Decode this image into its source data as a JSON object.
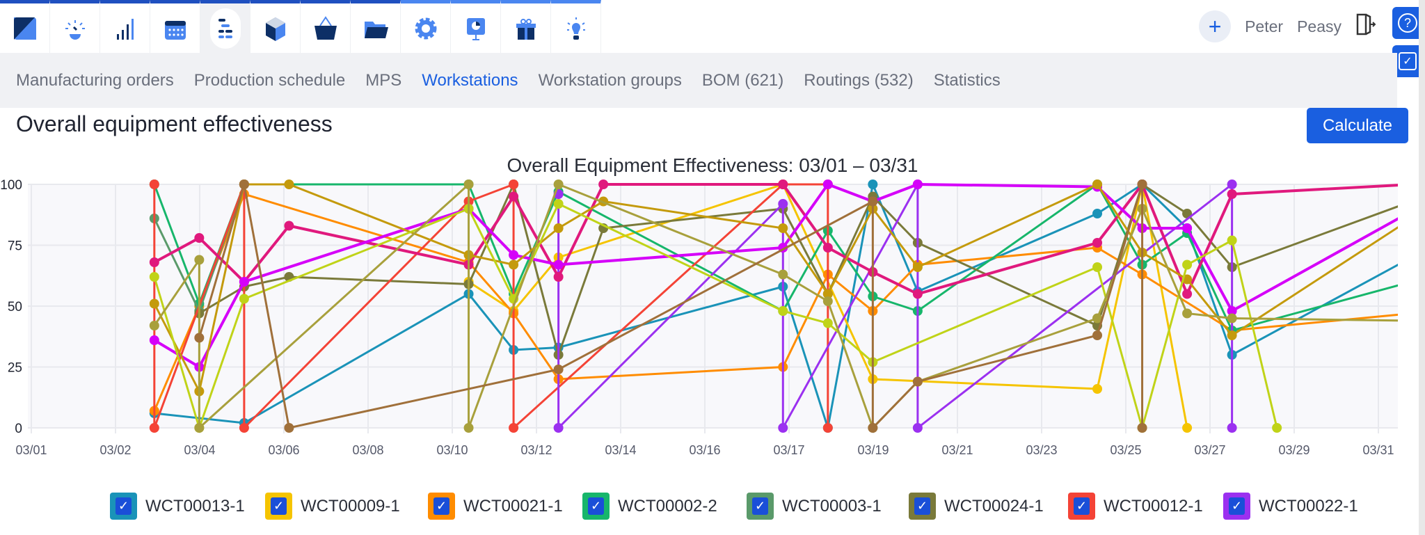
{
  "topnav": {
    "tabs": [
      {
        "icon": "logo-icon"
      },
      {
        "icon": "dashboard-gauge-icon"
      },
      {
        "icon": "signal-bars-icon"
      },
      {
        "icon": "calendar-icon"
      },
      {
        "icon": "production-planning-icon",
        "active": true
      },
      {
        "icon": "box-icon"
      },
      {
        "icon": "basket-icon"
      },
      {
        "icon": "folder-icon"
      },
      {
        "icon": "gear-icon"
      },
      {
        "icon": "presentation-icon"
      },
      {
        "icon": "gift-icon"
      },
      {
        "icon": "lightbulb-icon"
      }
    ]
  },
  "user": {
    "first": "Peter",
    "last": "Peasy"
  },
  "subnav": [
    "Manufacturing orders",
    "Production schedule",
    "MPS",
    "Workstations",
    "Workstation groups",
    "BOM (621)",
    "Routings (532)",
    "Statistics"
  ],
  "page": {
    "title": "Overall equipment effectiveness",
    "calculate": "Calculate"
  },
  "chart_data": {
    "type": "line",
    "title": "Overall Equipment Effectiveness: 03/01 – 03/31",
    "ylim": [
      0,
      100
    ],
    "yticks": [
      "0",
      "25",
      "50",
      "75",
      "100"
    ],
    "xticks": [
      "03/01",
      "03/02",
      "03/04",
      "03/06",
      "03/08",
      "03/10",
      "03/12",
      "03/14",
      "03/16",
      "03/17",
      "03/19",
      "03/21",
      "03/23",
      "03/25",
      "03/27",
      "03/29",
      "03/31"
    ],
    "grid": true,
    "legend": "bottom",
    "series": [
      {
        "name": "WCT00013-1",
        "color": "#1a93b8",
        "points": [
          [
            "03/03",
            6
          ],
          [
            "03/05",
            2
          ],
          [
            "03/10",
            55
          ],
          [
            "03/11",
            32
          ],
          [
            "03/12",
            33
          ],
          [
            "03/17",
            58
          ],
          [
            "03/18",
            0
          ],
          [
            "03/19",
            100
          ],
          [
            "03/20",
            56
          ],
          [
            "03/24",
            88
          ],
          [
            "03/25",
            100
          ],
          [
            "03/26",
            82
          ],
          [
            "03/27",
            30
          ],
          [
            "03/31",
            70
          ]
        ]
      },
      {
        "name": "WCT00009-1",
        "color": "#f5c400",
        "points": [
          [
            "03/10",
            60
          ],
          [
            "03/11",
            48
          ],
          [
            "03/12",
            70
          ],
          [
            "03/17",
            100
          ],
          [
            "03/19",
            20
          ],
          [
            "03/24",
            16
          ],
          [
            "03/25",
            100
          ],
          [
            "03/26",
            0
          ]
        ]
      },
      {
        "name": "WCT00021-1",
        "color": "#ff8c00",
        "points": [
          [
            "03/03",
            7
          ],
          [
            "03/04",
            50
          ],
          [
            "03/05",
            96
          ],
          [
            "03/10",
            68
          ],
          [
            "03/11",
            47
          ],
          [
            "03/12",
            20
          ],
          [
            "03/17",
            25
          ],
          [
            "03/18",
            63
          ],
          [
            "03/19",
            48
          ],
          [
            "03/20",
            67
          ],
          [
            "03/24",
            74
          ],
          [
            "03/25",
            63
          ],
          [
            "03/27",
            40
          ],
          [
            "03/31",
            47
          ]
        ]
      },
      {
        "name": "WCT00002-2",
        "color": "#17b66b",
        "points": [
          [
            "03/03",
            100
          ],
          [
            "03/04",
            51
          ],
          [
            "03/05",
            100
          ],
          [
            "03/10",
            100
          ],
          [
            "03/11",
            55
          ],
          [
            "03/12",
            97
          ],
          [
            "03/17",
            48
          ],
          [
            "03/18",
            81
          ],
          [
            "03/19",
            54
          ],
          [
            "03/20",
            48
          ],
          [
            "03/24",
            100
          ],
          [
            "03/25",
            67
          ],
          [
            "03/26",
            80
          ],
          [
            "03/27",
            40
          ],
          [
            "03/31",
            60
          ]
        ]
      },
      {
        "name": "WCT00003-1",
        "color": "#5a9a6a",
        "points": [
          [
            "03/03",
            86
          ],
          [
            "03/04",
            48
          ],
          [
            "03/05",
            100
          ]
        ]
      },
      {
        "name": "WCT00024-1",
        "color": "#7a7a3a",
        "points": [
          [
            "03/04",
            47
          ],
          [
            "03/05",
            58
          ],
          [
            "03/06",
            62
          ],
          [
            "03/10",
            59
          ],
          [
            "03/11",
            100
          ],
          [
            "03/12",
            30
          ],
          [
            "03/13",
            82
          ],
          [
            "03/17",
            90
          ],
          [
            "03/18",
            55
          ],
          [
            "03/19",
            95
          ],
          [
            "03/20",
            76
          ],
          [
            "03/24",
            42
          ],
          [
            "03/25",
            100
          ],
          [
            "03/26",
            88
          ],
          [
            "03/27",
            66
          ],
          [
            "03/31",
            93
          ]
        ]
      },
      {
        "name": "WCT00012-1",
        "color": "#f44336",
        "points": [
          [
            "03/03",
            100
          ],
          [
            "03/03",
            0
          ],
          [
            "03/05",
            100
          ],
          [
            "03/05",
            0
          ],
          [
            "03/10",
            93
          ],
          [
            "03/11",
            100
          ],
          [
            "03/11",
            0
          ],
          [
            "03/17",
            100
          ],
          [
            "03/18",
            100
          ],
          [
            "03/18",
            0
          ]
        ]
      },
      {
        "name": "WCT00022-1",
        "color": "#9b30f0",
        "points": [
          [
            "03/12",
            96
          ],
          [
            "03/12",
            0
          ],
          [
            "03/17",
            92
          ],
          [
            "03/17",
            0
          ],
          [
            "03/20",
            100
          ],
          [
            "03/20",
            0
          ],
          [
            "03/27",
            100
          ],
          [
            "03/27",
            0
          ]
        ]
      },
      {
        "color": "#e0197d",
        "points": [
          [
            "03/03",
            68
          ],
          [
            "03/04",
            78
          ],
          [
            "03/05",
            60
          ],
          [
            "03/06",
            83
          ],
          [
            "03/10",
            67
          ],
          [
            "03/11",
            95
          ],
          [
            "03/12",
            62
          ],
          [
            "03/13",
            100
          ],
          [
            "03/17",
            100
          ],
          [
            "03/18",
            74
          ],
          [
            "03/19",
            64
          ],
          [
            "03/20",
            55
          ],
          [
            "03/24",
            76
          ],
          [
            "03/25",
            100
          ],
          [
            "03/26",
            55
          ],
          [
            "03/27",
            96
          ],
          [
            "03/31",
            100
          ]
        ]
      },
      {
        "color": "#d500f9",
        "points": [
          [
            "03/03",
            36
          ],
          [
            "03/04",
            25
          ],
          [
            "03/05",
            60
          ],
          [
            "03/10",
            90
          ],
          [
            "03/11",
            71
          ],
          [
            "03/12",
            67
          ],
          [
            "03/17",
            74
          ],
          [
            "03/18",
            100
          ],
          [
            "03/19",
            93
          ],
          [
            "03/20",
            100
          ],
          [
            "03/24",
            99
          ],
          [
            "03/25",
            82
          ],
          [
            "03/26",
            82
          ],
          [
            "03/27",
            48
          ],
          [
            "03/31",
            89
          ]
        ]
      },
      {
        "color": "#c49a0c",
        "points": [
          [
            "03/03",
            51
          ],
          [
            "03/04",
            15
          ],
          [
            "03/05",
            100
          ],
          [
            "03/06",
            100
          ],
          [
            "03/10",
            71
          ],
          [
            "03/11",
            67
          ],
          [
            "03/12",
            82
          ],
          [
            "03/13",
            93
          ],
          [
            "03/17",
            82
          ],
          [
            "03/18",
            55
          ],
          [
            "03/19",
            90
          ],
          [
            "03/20",
            66
          ],
          [
            "03/24",
            100
          ],
          [
            "03/25",
            72
          ],
          [
            "03/26",
            61
          ],
          [
            "03/27",
            38
          ],
          [
            "03/31",
            86
          ]
        ]
      },
      {
        "color": "#c0d318",
        "points": [
          [
            "03/03",
            62
          ],
          [
            "03/04",
            0
          ],
          [
            "03/05",
            53
          ],
          [
            "03/10",
            90
          ],
          [
            "03/11",
            53
          ],
          [
            "03/12",
            92
          ],
          [
            "03/17",
            48
          ],
          [
            "03/18",
            43
          ],
          [
            "03/19",
            27
          ],
          [
            "03/24",
            66
          ],
          [
            "03/25",
            0
          ],
          [
            "03/26",
            67
          ],
          [
            "03/27",
            77
          ],
          [
            "03/28",
            0
          ]
        ]
      },
      {
        "color": "#a8a03c",
        "points": [
          [
            "03/03",
            42
          ],
          [
            "03/04",
            69
          ],
          [
            "03/04",
            0
          ],
          [
            "03/10",
            100
          ],
          [
            "03/10",
            0
          ],
          [
            "03/12",
            100
          ],
          [
            "03/17",
            63
          ],
          [
            "03/18",
            52
          ],
          [
            "03/19",
            0
          ],
          [
            "03/20",
            19
          ],
          [
            "03/24",
            45
          ],
          [
            "03/25",
            90
          ],
          [
            "03/26",
            47
          ],
          [
            "03/27",
            45
          ],
          [
            "03/31",
            44
          ]
        ]
      },
      {
        "color": "#a0703a",
        "points": [
          [
            "03/04",
            37
          ],
          [
            "03/05",
            100
          ],
          [
            "03/06",
            0
          ],
          [
            "03/12",
            24
          ],
          [
            "03/19",
            93
          ],
          [
            "03/19",
            0
          ],
          [
            "03/20",
            19
          ],
          [
            "03/24",
            38
          ],
          [
            "03/25",
            100
          ],
          [
            "03/25",
            0
          ]
        ]
      }
    ]
  }
}
